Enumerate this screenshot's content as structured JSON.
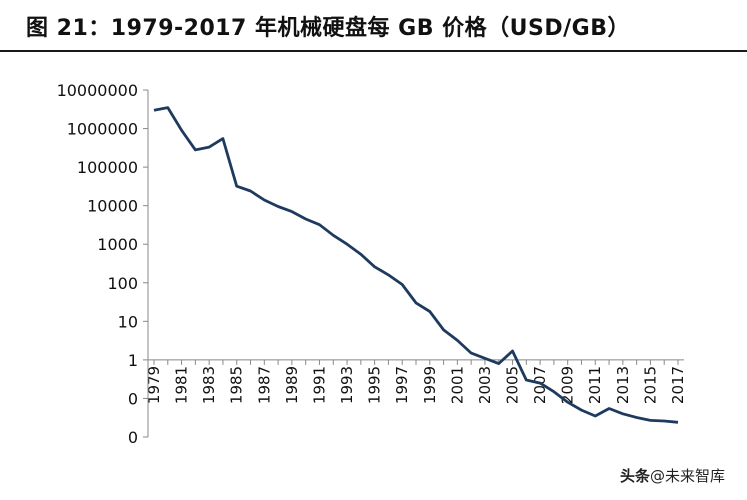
{
  "title": "图 21：1979-2017 年机械硬盘每 GB 价格（USD/GB）",
  "watermark": {
    "logo_text": "头条",
    "account": "@未来智库"
  },
  "chart_data": {
    "type": "line",
    "title": "图 21：1979-2017 年机械硬盘每 GB 价格（USD/GB）",
    "xlabel": "",
    "ylabel": "",
    "y_scale": "log",
    "ylim": [
      0.01,
      10000000
    ],
    "y_tick_values": [
      0.01,
      0.1,
      1,
      10,
      100,
      1000,
      10000,
      100000,
      1000000,
      10000000
    ],
    "y_tick_labels": [
      "0",
      "0",
      "1",
      "10",
      "100",
      "1000",
      "10000",
      "100000",
      "1000000",
      "10000000"
    ],
    "xlim": [
      1979,
      2017
    ],
    "x_tick_labels": [
      "1979",
      "1981",
      "1983",
      "1985",
      "1987",
      "1989",
      "1991",
      "1993",
      "1995",
      "1997",
      "1999",
      "2001",
      "2003",
      "2005",
      "2007",
      "2009",
      "2011",
      "2013",
      "2015",
      "2017"
    ],
    "line_color": "#1f3a5f",
    "series": [
      {
        "x": [
          1979,
          1980,
          1981,
          1982,
          1983,
          1984,
          1985,
          1986,
          1987,
          1988,
          1989,
          1990,
          1991,
          1992,
          1993,
          1994,
          1995,
          1996,
          1997,
          1998,
          1999,
          2000,
          2001,
          2002,
          2003,
          2004,
          2005,
          2006,
          2007,
          2008,
          2009,
          2010,
          2011,
          2012,
          2013,
          2014,
          2015,
          2016,
          2017
        ],
        "values": [
          3000000,
          3500000,
          900000,
          280000,
          330000,
          550000,
          32000,
          24000,
          14000,
          9500,
          7000,
          4500,
          3200,
          1700,
          1000,
          550,
          260,
          160,
          90,
          30,
          18,
          6,
          3.2,
          1.5,
          1.1,
          0.8,
          1.7,
          0.3,
          0.25,
          0.15,
          0.08,
          0.05,
          0.035,
          0.055,
          0.04,
          0.032,
          0.027,
          0.026,
          0.024
        ]
      }
    ]
  }
}
